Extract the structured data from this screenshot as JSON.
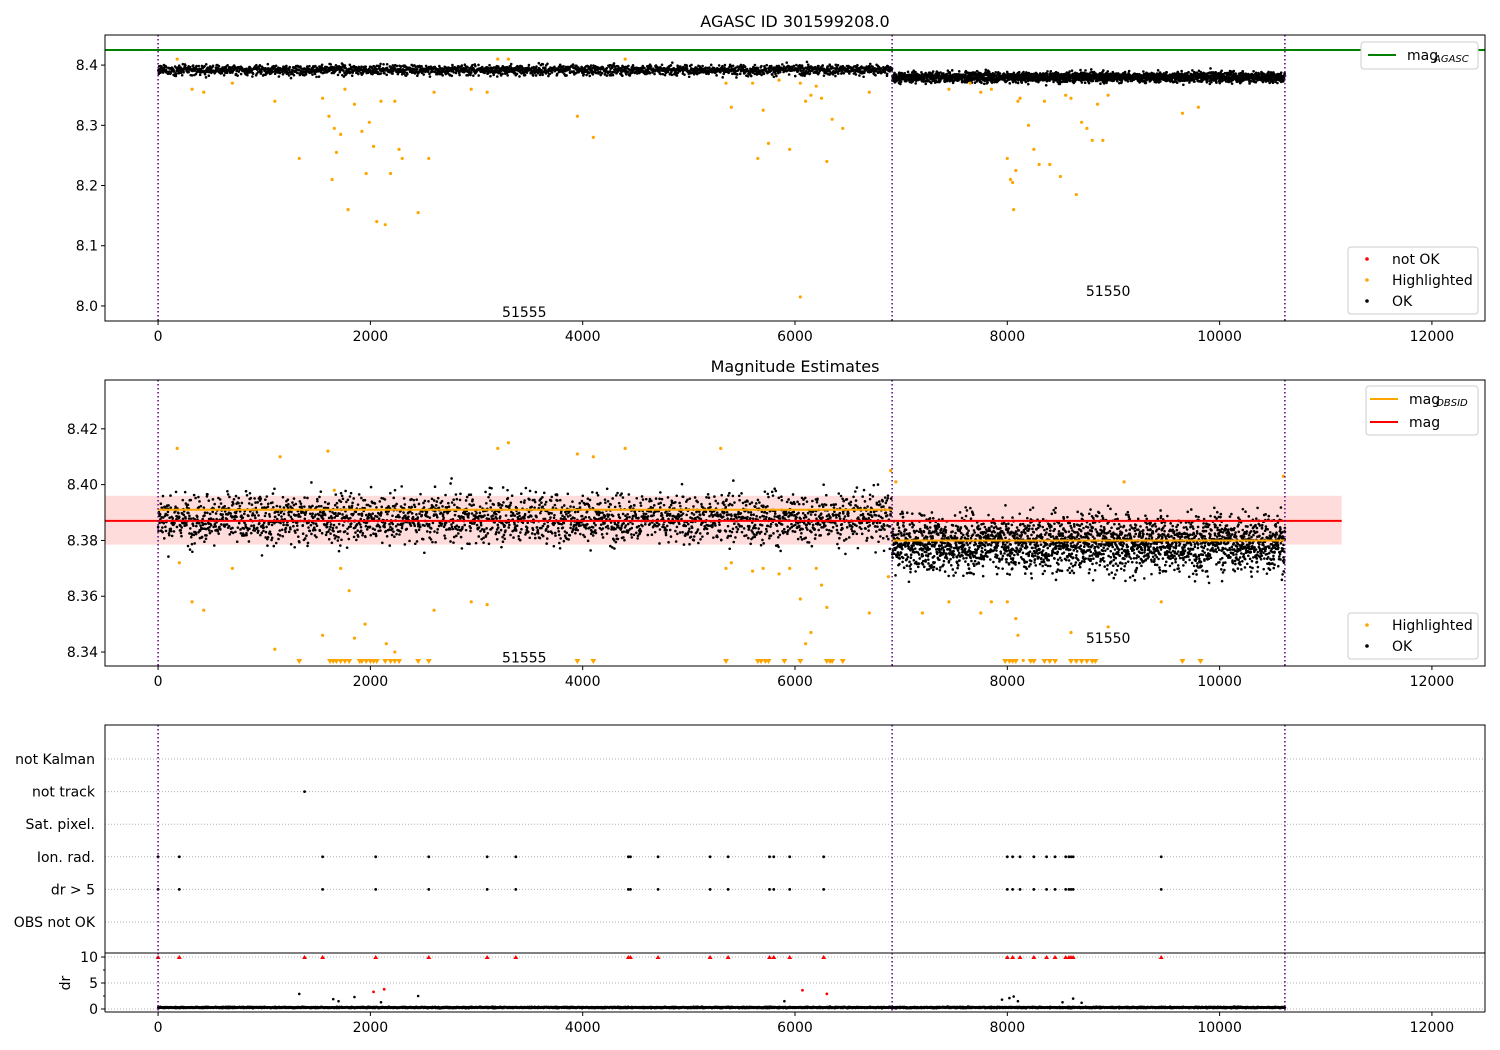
{
  "chart_data": [
    {
      "type": "scatter",
      "title": "AGASC ID 301599208.0",
      "xlim": [
        -500,
        12500
      ],
      "ylim": [
        7.975,
        8.45
      ],
      "x_ticks": [
        0,
        2000,
        4000,
        6000,
        8000,
        10000,
        12000
      ],
      "y_ticks": [
        8.0,
        8.1,
        8.2,
        8.3,
        8.4
      ],
      "x_tick_labels": [
        "0",
        "2000",
        "4000",
        "6000",
        "8000",
        "10000",
        "12000"
      ],
      "y_tick_labels": [
        "8.0",
        "8.1",
        "8.2",
        "8.3",
        "8.4"
      ],
      "obsid_boundaries": [
        0,
        6915,
        10615
      ],
      "obsid_labels": [
        {
          "text": "51555",
          "x": 3450,
          "y": 7.99
        },
        {
          "text": "51550",
          "x": 8950,
          "y": 8.025
        }
      ],
      "lines": [
        {
          "name": "mag",
          "subscript": "AGASC",
          "y": 8.425,
          "x_range": [
            -500,
            12500
          ],
          "color": "#008000"
        }
      ],
      "segments": [
        {
          "x_range": [
            0,
            6915
          ],
          "center": 8.392,
          "spread": 0.008
        },
        {
          "x_range": [
            6915,
            10615
          ],
          "center": 8.38,
          "spread": 0.008
        }
      ],
      "highlighted": [
        [
          180,
          8.41
        ],
        [
          320,
          8.36
        ],
        [
          430,
          8.355
        ],
        [
          700,
          8.37
        ],
        [
          1100,
          8.34
        ],
        [
          1330,
          8.245
        ],
        [
          1550,
          8.345
        ],
        [
          1610,
          8.315
        ],
        [
          1640,
          8.21
        ],
        [
          1660,
          8.295
        ],
        [
          1680,
          8.255
        ],
        [
          1720,
          8.285
        ],
        [
          1760,
          8.36
        ],
        [
          1790,
          8.16
        ],
        [
          1850,
          8.335
        ],
        [
          1920,
          8.29
        ],
        [
          1960,
          8.22
        ],
        [
          1990,
          8.305
        ],
        [
          2030,
          8.265
        ],
        [
          2060,
          8.14
        ],
        [
          2100,
          8.34
        ],
        [
          2140,
          8.135
        ],
        [
          2190,
          8.22
        ],
        [
          2230,
          8.34
        ],
        [
          2270,
          8.26
        ],
        [
          2300,
          8.245
        ],
        [
          2450,
          8.155
        ],
        [
          2550,
          8.245
        ],
        [
          2600,
          8.355
        ],
        [
          2950,
          8.36
        ],
        [
          3100,
          8.355
        ],
        [
          3200,
          8.41
        ],
        [
          3300,
          8.41
        ],
        [
          3950,
          8.315
        ],
        [
          4100,
          8.28
        ],
        [
          4400,
          8.41
        ],
        [
          5350,
          8.37
        ],
        [
          5400,
          8.33
        ],
        [
          5600,
          8.37
        ],
        [
          5650,
          8.245
        ],
        [
          5700,
          8.325
        ],
        [
          5750,
          8.27
        ],
        [
          5850,
          8.375
        ],
        [
          5950,
          8.26
        ],
        [
          6050,
          8.37
        ],
        [
          6100,
          8.34
        ],
        [
          6150,
          8.35
        ],
        [
          6200,
          8.365
        ],
        [
          6250,
          8.345
        ],
        [
          6300,
          8.24
        ],
        [
          6350,
          8.31
        ],
        [
          6450,
          8.295
        ],
        [
          6700,
          8.355
        ],
        [
          7450,
          8.36
        ],
        [
          7650,
          8.37
        ],
        [
          7750,
          8.355
        ],
        [
          7850,
          8.36
        ],
        [
          8000,
          8.245
        ],
        [
          8030,
          8.21
        ],
        [
          8050,
          8.205
        ],
        [
          8060,
          8.16
        ],
        [
          8080,
          8.225
        ],
        [
          8100,
          8.34
        ],
        [
          8120,
          8.345
        ],
        [
          8200,
          8.3
        ],
        [
          8250,
          8.26
        ],
        [
          8300,
          8.235
        ],
        [
          8350,
          8.34
        ],
        [
          8400,
          8.235
        ],
        [
          8500,
          8.215
        ],
        [
          8550,
          8.35
        ],
        [
          8600,
          8.345
        ],
        [
          8650,
          8.185
        ],
        [
          8700,
          8.305
        ],
        [
          8750,
          8.295
        ],
        [
          8800,
          8.275
        ],
        [
          8850,
          8.335
        ],
        [
          8900,
          8.275
        ],
        [
          8950,
          8.35
        ],
        [
          9650,
          8.32
        ],
        [
          9800,
          8.33
        ]
      ],
      "not_ok": [],
      "outliers_ok": [
        [
          6050,
          8.015
        ]
      ],
      "legends": [
        {
          "position": "upper-right",
          "entries": [
            {
              "label": "mag",
              "subscript": "AGASC",
              "color": "#008000"
            }
          ]
        },
        {
          "position": "lower-right",
          "entries": [
            {
              "label": "not OK",
              "color": "#ff0000"
            },
            {
              "label": "Highlighted",
              "color": "#ffa500"
            },
            {
              "label": "OK",
              "color": "#000000"
            }
          ]
        }
      ]
    },
    {
      "type": "scatter",
      "title": "Magnitude Estimates",
      "xlim": [
        -500,
        12500
      ],
      "ylim": [
        8.335,
        8.4375
      ],
      "x_ticks": [
        0,
        2000,
        4000,
        6000,
        8000,
        10000,
        12000
      ],
      "y_ticks": [
        8.34,
        8.36,
        8.38,
        8.4,
        8.42
      ],
      "x_tick_labels": [
        "0",
        "2000",
        "4000",
        "6000",
        "8000",
        "10000",
        "12000"
      ],
      "y_tick_labels": [
        "8.34",
        "8.36",
        "8.38",
        "8.40",
        "8.42"
      ],
      "obsid_boundaries": [
        0,
        6915,
        10615
      ],
      "obsid_labels": [
        {
          "text": "51555",
          "x": 3450,
          "y": 8.338
        },
        {
          "text": "51550",
          "x": 8950,
          "y": 8.345
        }
      ],
      "mag": {
        "name": "mag",
        "y": 8.387,
        "band": [
          8.3785,
          8.396
        ],
        "x_range": [
          -500,
          11150
        ],
        "color": "#ff0000",
        "band_color": "#ffdcdc"
      },
      "mag_obsid": [
        {
          "name": "mag",
          "subscript": "OBSID",
          "x_range": [
            0,
            6915
          ],
          "y": 8.391,
          "color": "#ffa500"
        },
        {
          "name": "mag",
          "subscript": "OBSID",
          "x_range": [
            6915,
            10615
          ],
          "y": 8.38,
          "color": "#ffa500"
        }
      ],
      "segments": [
        {
          "x_range": [
            0,
            6915
          ],
          "center": 8.388,
          "spread": 0.0075
        },
        {
          "x_range": [
            6915,
            10615
          ],
          "center": 8.379,
          "spread": 0.0085
        }
      ],
      "highlighted": [
        [
          180,
          8.413
        ],
        [
          200,
          8.372
        ],
        [
          320,
          8.358
        ],
        [
          430,
          8.355
        ],
        [
          700,
          8.37
        ],
        [
          1100,
          8.341
        ],
        [
          1150,
          8.41
        ],
        [
          1550,
          8.346
        ],
        [
          1600,
          8.412
        ],
        [
          1660,
          8.398
        ],
        [
          1720,
          8.37
        ],
        [
          1800,
          8.362
        ],
        [
          1850,
          8.345
        ],
        [
          1950,
          8.35
        ],
        [
          2150,
          8.343
        ],
        [
          2230,
          8.34
        ],
        [
          2600,
          8.355
        ],
        [
          2950,
          8.358
        ],
        [
          3100,
          8.357
        ],
        [
          3200,
          8.413
        ],
        [
          3300,
          8.415
        ],
        [
          3950,
          8.411
        ],
        [
          4100,
          8.41
        ],
        [
          4400,
          8.413
        ],
        [
          5300,
          8.413
        ],
        [
          5350,
          8.37
        ],
        [
          5400,
          8.372
        ],
        [
          5600,
          8.369
        ],
        [
          5700,
          8.37
        ],
        [
          5850,
          8.368
        ],
        [
          5950,
          8.37
        ],
        [
          6050,
          8.359
        ],
        [
          6100,
          8.343
        ],
        [
          6150,
          8.347
        ],
        [
          6200,
          8.37
        ],
        [
          6250,
          8.364
        ],
        [
          6300,
          8.356
        ],
        [
          6700,
          8.354
        ],
        [
          6880,
          8.367
        ],
        [
          6900,
          8.405
        ],
        [
          6950,
          8.401
        ],
        [
          7200,
          8.354
        ],
        [
          7450,
          8.358
        ],
        [
          7750,
          8.354
        ],
        [
          7850,
          8.358
        ],
        [
          8000,
          8.358
        ],
        [
          8080,
          8.352
        ],
        [
          8100,
          8.346
        ],
        [
          8150,
          8.337
        ],
        [
          8600,
          8.347
        ],
        [
          8950,
          8.349
        ],
        [
          9100,
          8.401
        ],
        [
          9450,
          8.358
        ],
        [
          10600,
          8.403
        ]
      ],
      "below_range": [
        1330,
        1620,
        1650,
        1680,
        1720,
        1760,
        1800,
        1900,
        1920,
        1960,
        2000,
        2030,
        2060,
        2140,
        2190,
        2230,
        2270,
        2450,
        2550,
        3950,
        4100,
        5350,
        5650,
        5680,
        5720,
        5750,
        5900,
        6050,
        6300,
        6330,
        6350,
        6450,
        7980,
        8020,
        8050,
        8080,
        8220,
        8250,
        8350,
        8400,
        8450,
        8600,
        8650,
        8700,
        8750,
        8800,
        8830,
        9650,
        9820
      ],
      "legends": [
        {
          "position": "upper-right",
          "entries": [
            {
              "label": "mag",
              "subscript": "OBSID",
              "color": "#ffa500"
            },
            {
              "label": "mag",
              "subscript": "",
              "color": "#ff0000"
            }
          ]
        },
        {
          "position": "lower-right",
          "entries": [
            {
              "label": "Highlighted",
              "color": "#ffa500"
            },
            {
              "label": "OK",
              "color": "#000000"
            }
          ]
        }
      ]
    },
    {
      "type": "scatter",
      "xlim": [
        -500,
        12500
      ],
      "x_ticks": [
        0,
        2000,
        4000,
        6000,
        8000,
        10000,
        12000
      ],
      "x_tick_labels": [
        "0",
        "2000",
        "4000",
        "6000",
        "8000",
        "10000",
        "12000"
      ],
      "obsid_boundaries": [
        0,
        6915,
        10615
      ],
      "flag_categories": [
        "not Kalman",
        "not track",
        "Sat. pixel.",
        "Ion. rad.",
        "dr > 5",
        "OBS not OK"
      ],
      "flags": {
        "not track": [
          1380
        ],
        "Ion. rad.": [
          0,
          200,
          1550,
          2050,
          2550,
          3100,
          3370,
          4430,
          4450,
          4710,
          5200,
          5370,
          5760,
          5800,
          5950,
          6270,
          8000,
          8050,
          8120,
          8250,
          8370,
          8450,
          8550,
          8580,
          8600,
          8620,
          9450
        ],
        "dr > 5": [
          0,
          200,
          1550,
          2050,
          2550,
          3100,
          3370,
          4430,
          4450,
          4710,
          5200,
          5370,
          5760,
          5800,
          5950,
          6270,
          8000,
          8050,
          8120,
          8250,
          8370,
          8450,
          8550,
          8580,
          8600,
          8620,
          9450
        ]
      },
      "dr": {
        "ylabel": "dr",
        "ylim": [
          0,
          10
        ],
        "y_ticks": [
          0,
          5,
          10
        ],
        "y_tick_labels": [
          "0",
          "5",
          "10"
        ],
        "clipped_at_10": [
          0,
          200,
          1380,
          1550,
          2050,
          2550,
          3100,
          3370,
          4430,
          4450,
          4710,
          5200,
          5370,
          5760,
          5800,
          5950,
          6270,
          8000,
          8050,
          8120,
          8250,
          8370,
          8450,
          8550,
          8580,
          8600,
          8620,
          9450
        ],
        "ok_high": [
          [
            1330,
            2.9
          ],
          [
            1650,
            1.9
          ],
          [
            1700,
            1.5
          ],
          [
            1850,
            2.3
          ],
          [
            2100,
            1.3
          ],
          [
            2450,
            2.5
          ],
          [
            5900,
            1.5
          ],
          [
            7950,
            1.8
          ],
          [
            8020,
            2.1
          ],
          [
            8060,
            2.4
          ],
          [
            8100,
            1.5
          ],
          [
            8520,
            1.3
          ],
          [
            8620,
            2.0
          ],
          [
            8700,
            1.2
          ]
        ],
        "not_ok_high": [
          [
            2030,
            3.3
          ],
          [
            2130,
            3.8
          ],
          [
            6070,
            3.6
          ],
          [
            6300,
            2.9
          ]
        ],
        "baseline": 0.3
      }
    }
  ]
}
